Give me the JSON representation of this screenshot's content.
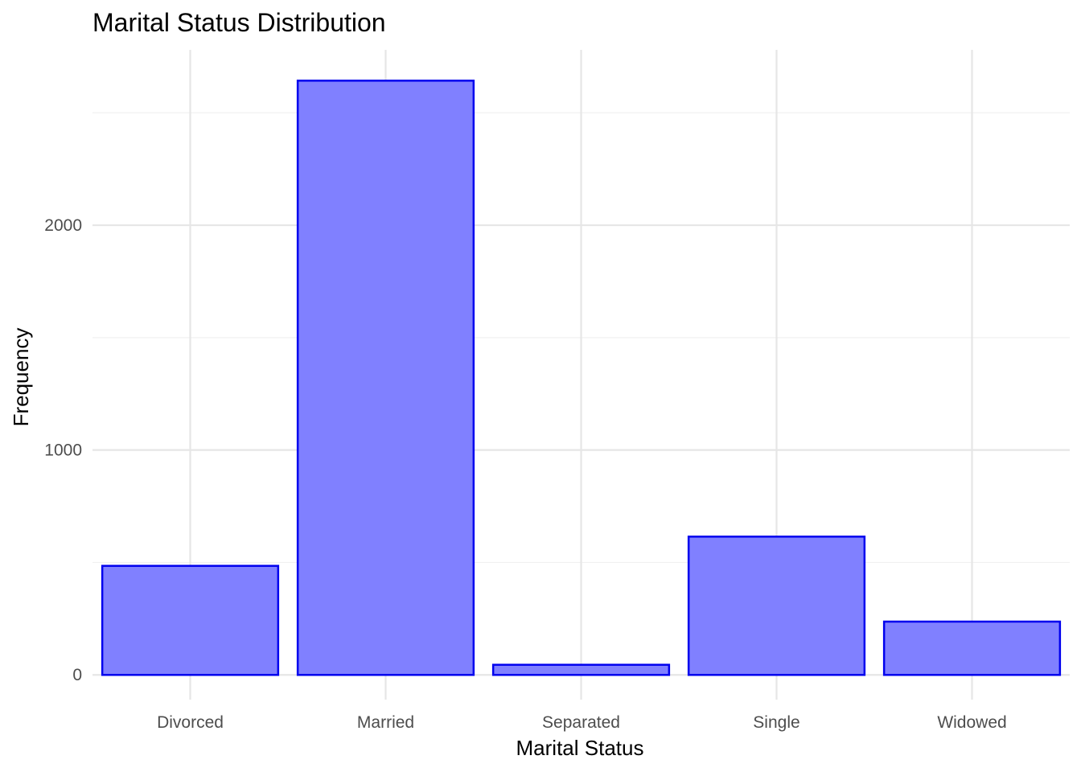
{
  "chart_data": {
    "type": "bar",
    "title": "Marital Status Distribution",
    "xlabel": "Marital Status",
    "ylabel": "Frequency",
    "categories": [
      "Divorced",
      "Married",
      "Separated",
      "Single",
      "Widowed"
    ],
    "values": [
      485,
      2643,
      45,
      615,
      237
    ],
    "ylim": [
      -110,
      2780
    ],
    "y_ticks": [
      0,
      1000,
      2000
    ],
    "y_tick_labels": [
      "0",
      "1000",
      "2000"
    ],
    "y_minor_ticks": [
      500,
      1500,
      2500
    ],
    "grid": true,
    "legend": "none",
    "bar_fill": "#8080ff",
    "bar_outline": "#0000ee",
    "grid_color": "#e6e6e6"
  }
}
